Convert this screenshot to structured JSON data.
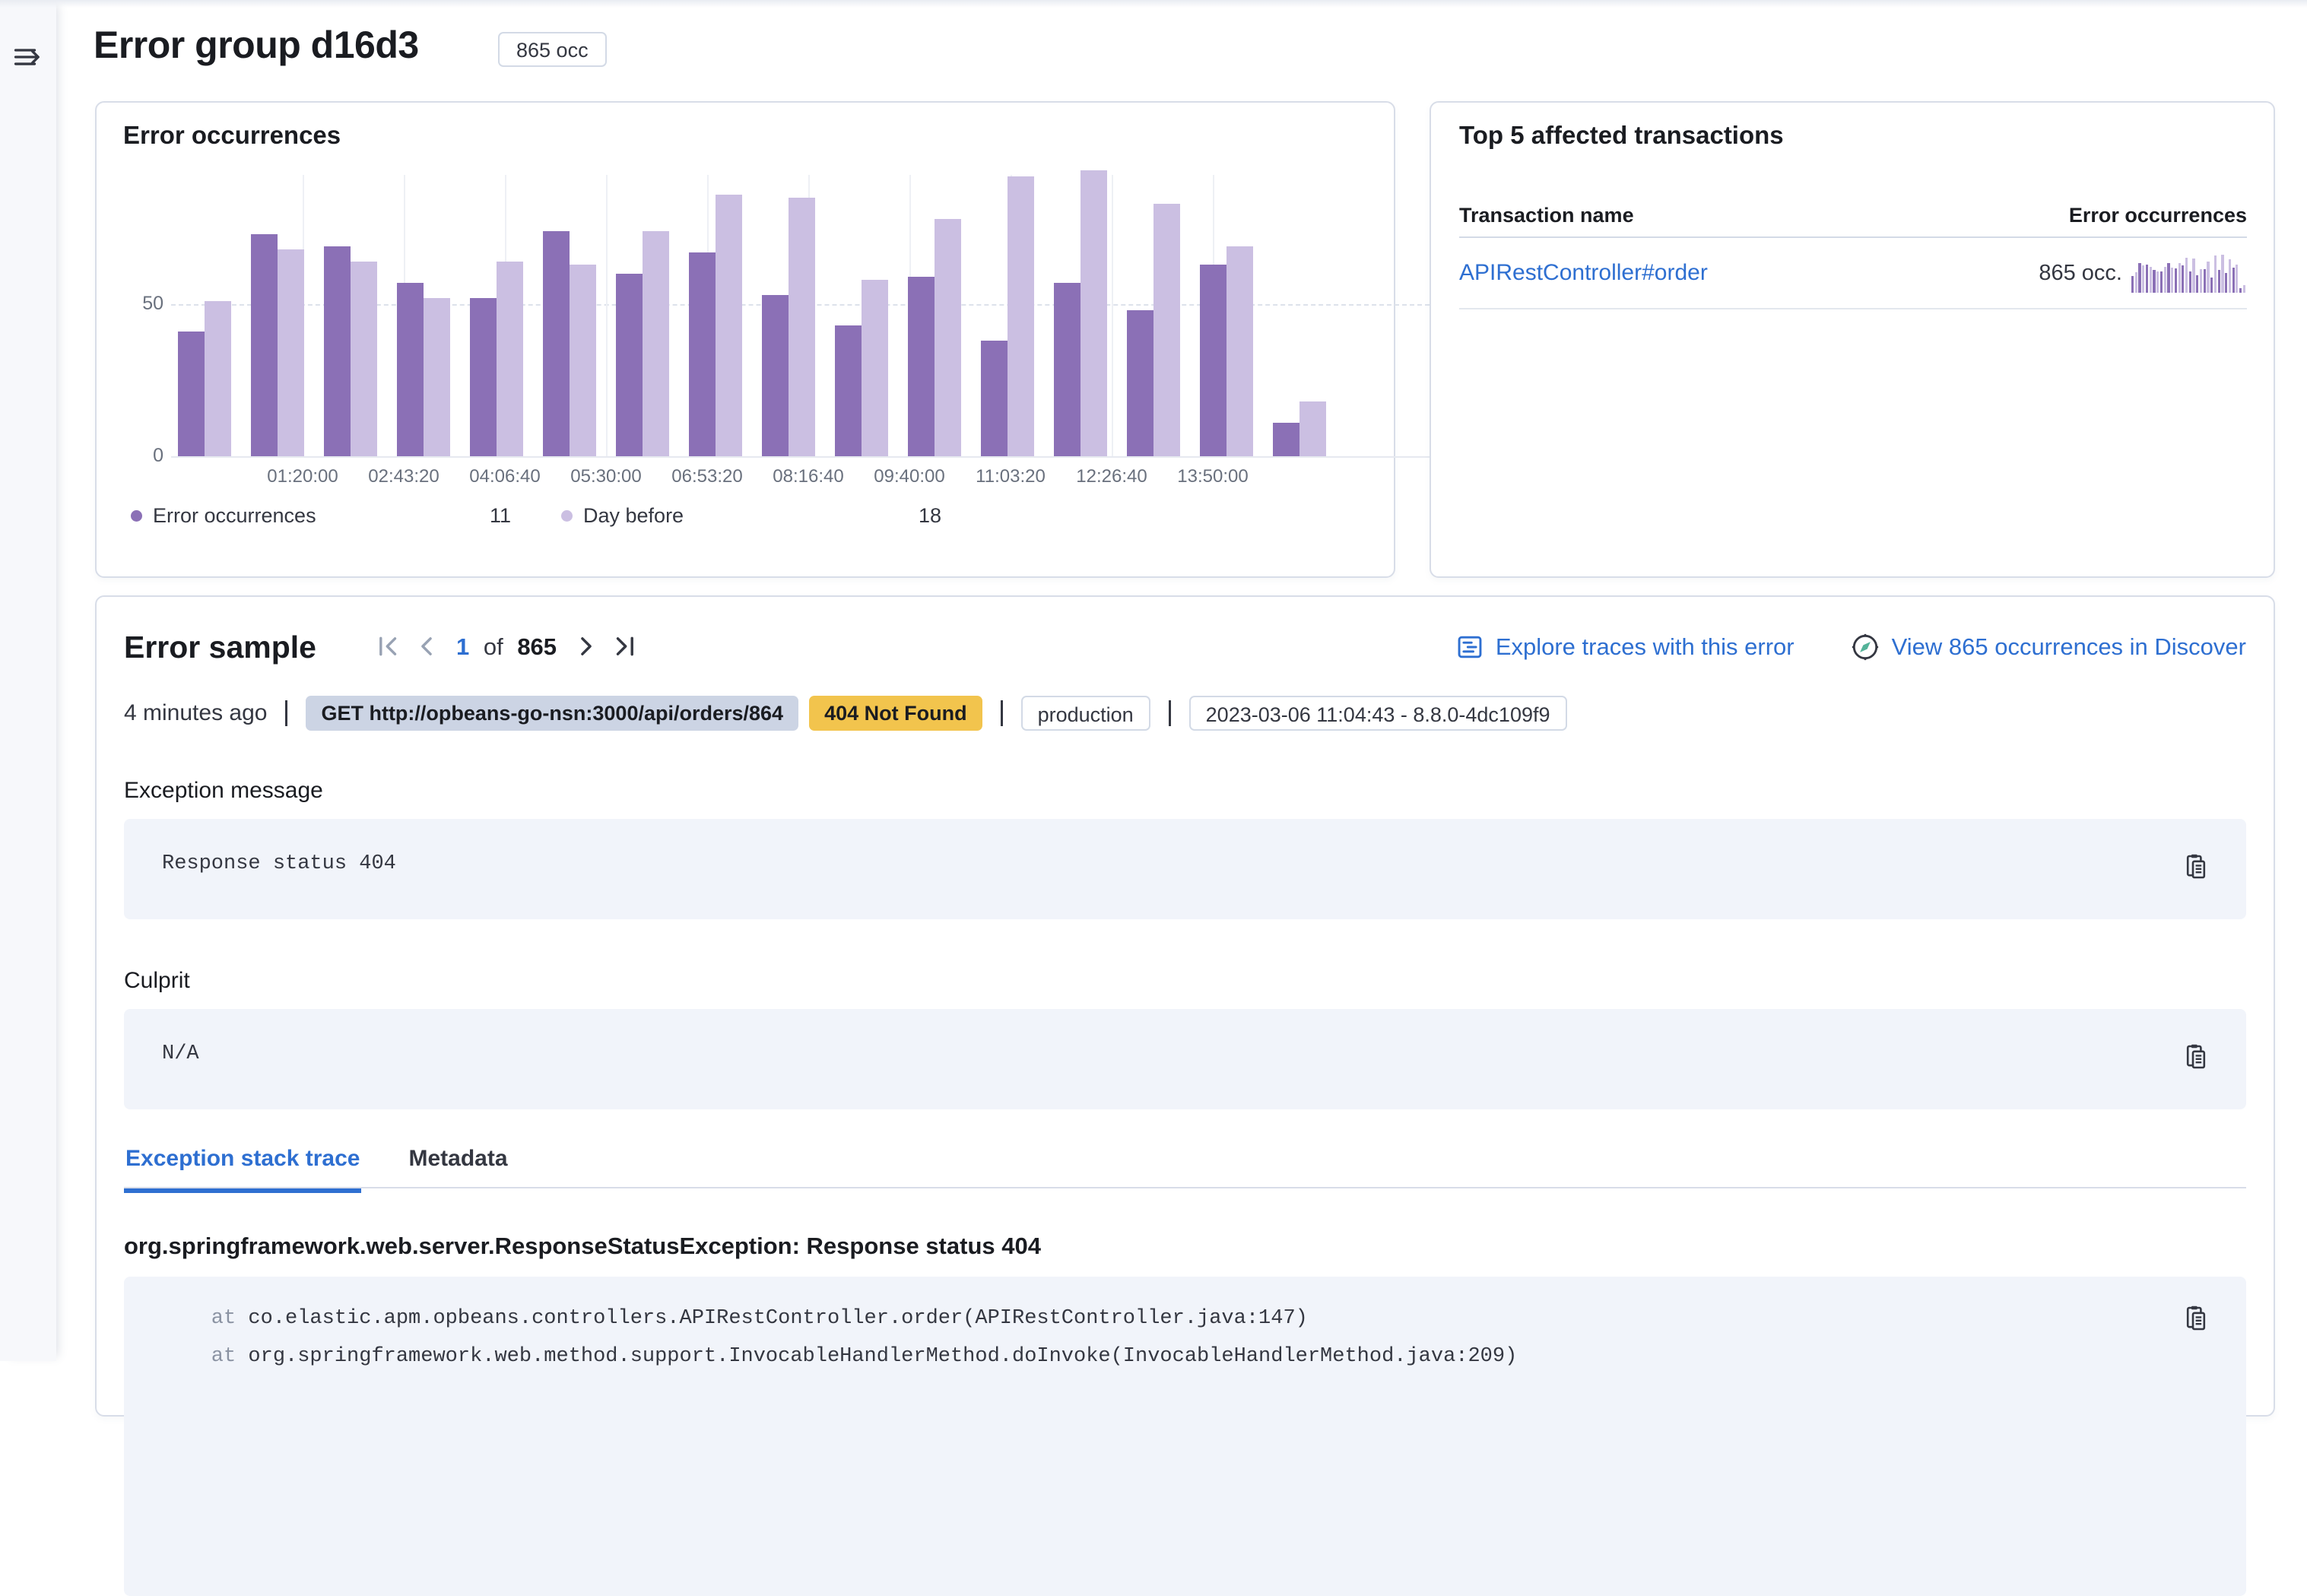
{
  "page": {
    "title": "Error group d16d3",
    "occurrences_badge": "865 occ"
  },
  "error_occurrences_panel": {
    "title": "Error occurrences",
    "legend": [
      {
        "label": "Error occurrences",
        "value": "11",
        "color": "#8b70b6"
      },
      {
        "label": "Day before",
        "value": "18",
        "color": "#cbbfe2"
      }
    ]
  },
  "chart_data": {
    "type": "bar",
    "title": "Error occurrences",
    "x_tick_labels": [
      "01:20:00",
      "02:43:20",
      "04:06:40",
      "05:30:00",
      "06:53:20",
      "08:16:40",
      "09:40:00",
      "11:03:20",
      "12:26:40",
      "13:50:00"
    ],
    "series": [
      {
        "name": "Error occurrences",
        "color": "#8b70b6",
        "values": [
          41,
          73,
          69,
          57,
          52,
          74,
          60,
          67,
          53,
          43,
          59,
          38,
          57,
          48,
          63,
          11
        ]
      },
      {
        "name": "Day before",
        "color": "#cbbfe2",
        "values": [
          51,
          68,
          64,
          52,
          64,
          63,
          74,
          86,
          85,
          58,
          78,
          92,
          94,
          83,
          69,
          18
        ]
      }
    ],
    "y_ticks": [
      0,
      50
    ],
    "y_ticks_display": [
      "50",
      "0"
    ],
    "ylim": [
      0,
      94
    ],
    "grid": {
      "vertical": true,
      "horizontal_dashed_at": 50
    },
    "legend_position": "bottom"
  },
  "transactions_panel": {
    "title": "Top 5 affected transactions",
    "columns": [
      "Transaction name",
      "Error occurrences"
    ],
    "rows": [
      {
        "name": "APIRestController#order",
        "occurrences": "865 occ."
      }
    ]
  },
  "error_sample": {
    "title": "Error sample",
    "pagination": {
      "current": "1",
      "of_label": "of",
      "total": "865"
    },
    "links": [
      {
        "label": "Explore traces with this error",
        "icon": "apm-trace-icon"
      },
      {
        "label": "View 865 occurrences in Discover",
        "icon": "discover-compass-icon"
      }
    ],
    "meta": {
      "time_ago": "4 minutes ago",
      "request_badge": "GET http://opbeans-go-nsn:3000/api/orders/864",
      "status_badge": "404 Not Found",
      "environment_badge": "production",
      "version_badge": "2023-03-06 11:04:43 - 8.8.0-4dc109f9"
    },
    "exception_message": {
      "label": "Exception message",
      "value": "Response status 404"
    },
    "culprit": {
      "label": "Culprit",
      "value": "N/A"
    },
    "tabs": [
      {
        "label": "Exception stack trace",
        "active": true
      },
      {
        "label": "Metadata",
        "active": false
      }
    ],
    "stack_trace": {
      "heading": "org.springframework.web.server.ResponseStatusException: Response status 404",
      "frames": [
        {
          "prefix": "at",
          "text": "co.elastic.apm.opbeans.controllers.APIRestController.order(APIRestController.java:147)"
        },
        {
          "prefix": "at",
          "text": "org.springframework.web.method.support.InvocableHandlerMethod.doInvoke(InvocableHandlerMethod.java:209)"
        }
      ]
    }
  },
  "colors": {
    "accent_link": "#2e6fd1",
    "bar_current": "#8b70b6",
    "bar_day_before": "#cbbfe2",
    "status_badge_bg": "#f2c44d",
    "request_badge_bg": "#ccd4e4",
    "code_block_bg": "#f1f4fa",
    "needle_green": "#54b399"
  }
}
